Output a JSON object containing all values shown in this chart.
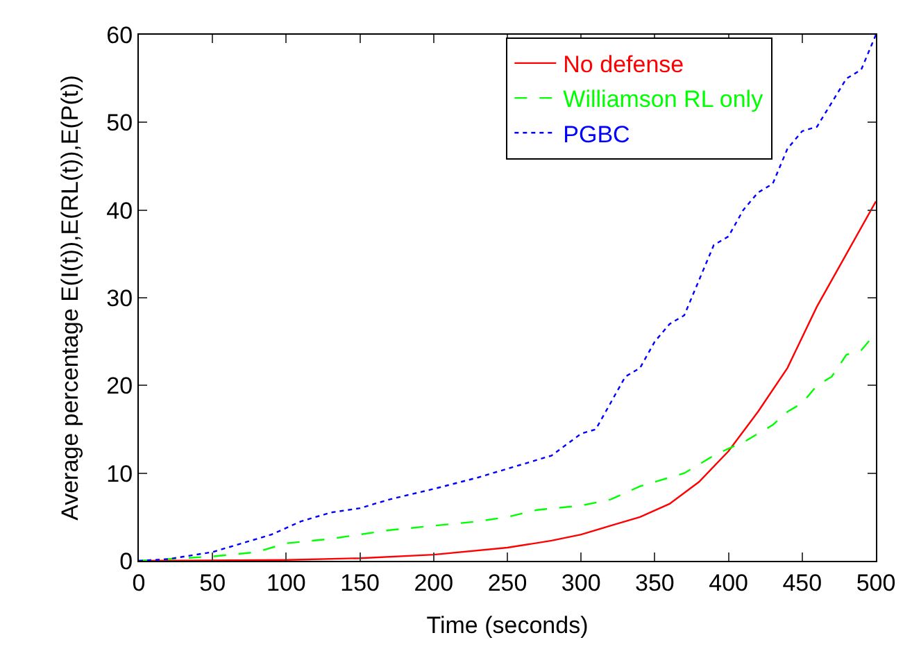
{
  "chart_data": {
    "type": "line",
    "xlabel": "Time (seconds)",
    "ylabel": "Average percentage E(I(t)),E(RL(t)),E(P(t))",
    "xlim": [
      0,
      500
    ],
    "xticks": [
      0,
      50,
      100,
      150,
      200,
      250,
      300,
      350,
      400,
      450,
      500
    ],
    "ylim": [
      0,
      60
    ],
    "yticks": [
      0,
      10,
      20,
      30,
      40,
      50,
      60
    ],
    "legend": "top right",
    "marker": "none",
    "series": [
      {
        "name": "No defense",
        "color": "#ff0000",
        "line_style": "solid",
        "x": [
          0,
          100,
          150,
          200,
          250,
          280,
          300,
          320,
          340,
          360,
          380,
          400,
          420,
          440,
          460,
          480,
          500
        ],
        "values": [
          0,
          0.1,
          0.3,
          0.7,
          1.5,
          2.3,
          3,
          4,
          5,
          6.5,
          9,
          12.5,
          17,
          22,
          29,
          35,
          41
        ]
      },
      {
        "name": "Williamson RL only",
        "color": "#00ff00",
        "line_style": "dashed",
        "x": [
          0,
          50,
          80,
          100,
          130,
          150,
          170,
          200,
          230,
          250,
          270,
          300,
          320,
          340,
          350,
          370,
          380,
          390,
          400,
          410,
          430,
          440,
          450,
          460,
          470,
          480,
          490,
          500
        ],
        "values": [
          0,
          0.5,
          1,
          2,
          2.5,
          3,
          3.5,
          4,
          4.5,
          5,
          5.8,
          6.3,
          7,
          8.5,
          9,
          10,
          11,
          12,
          12.8,
          13.5,
          15.5,
          17,
          18,
          20,
          21,
          23.5,
          24,
          26
        ]
      },
      {
        "name": "PGBC",
        "color": "#0000ff",
        "line_style": "dotted",
        "x": [
          0,
          20,
          50,
          70,
          90,
          110,
          130,
          150,
          170,
          200,
          230,
          260,
          280,
          300,
          310,
          330,
          340,
          350,
          360,
          370,
          390,
          400,
          410,
          420,
          430,
          440,
          450,
          460,
          480,
          490,
          500
        ],
        "values": [
          0,
          0.2,
          1,
          2,
          3,
          4.5,
          5.5,
          6,
          7,
          8.2,
          9.5,
          11,
          12,
          14.5,
          15,
          21,
          22,
          25,
          27,
          28,
          36,
          37,
          40,
          42,
          43,
          47,
          49,
          49.5,
          55,
          56,
          60
        ]
      }
    ]
  }
}
